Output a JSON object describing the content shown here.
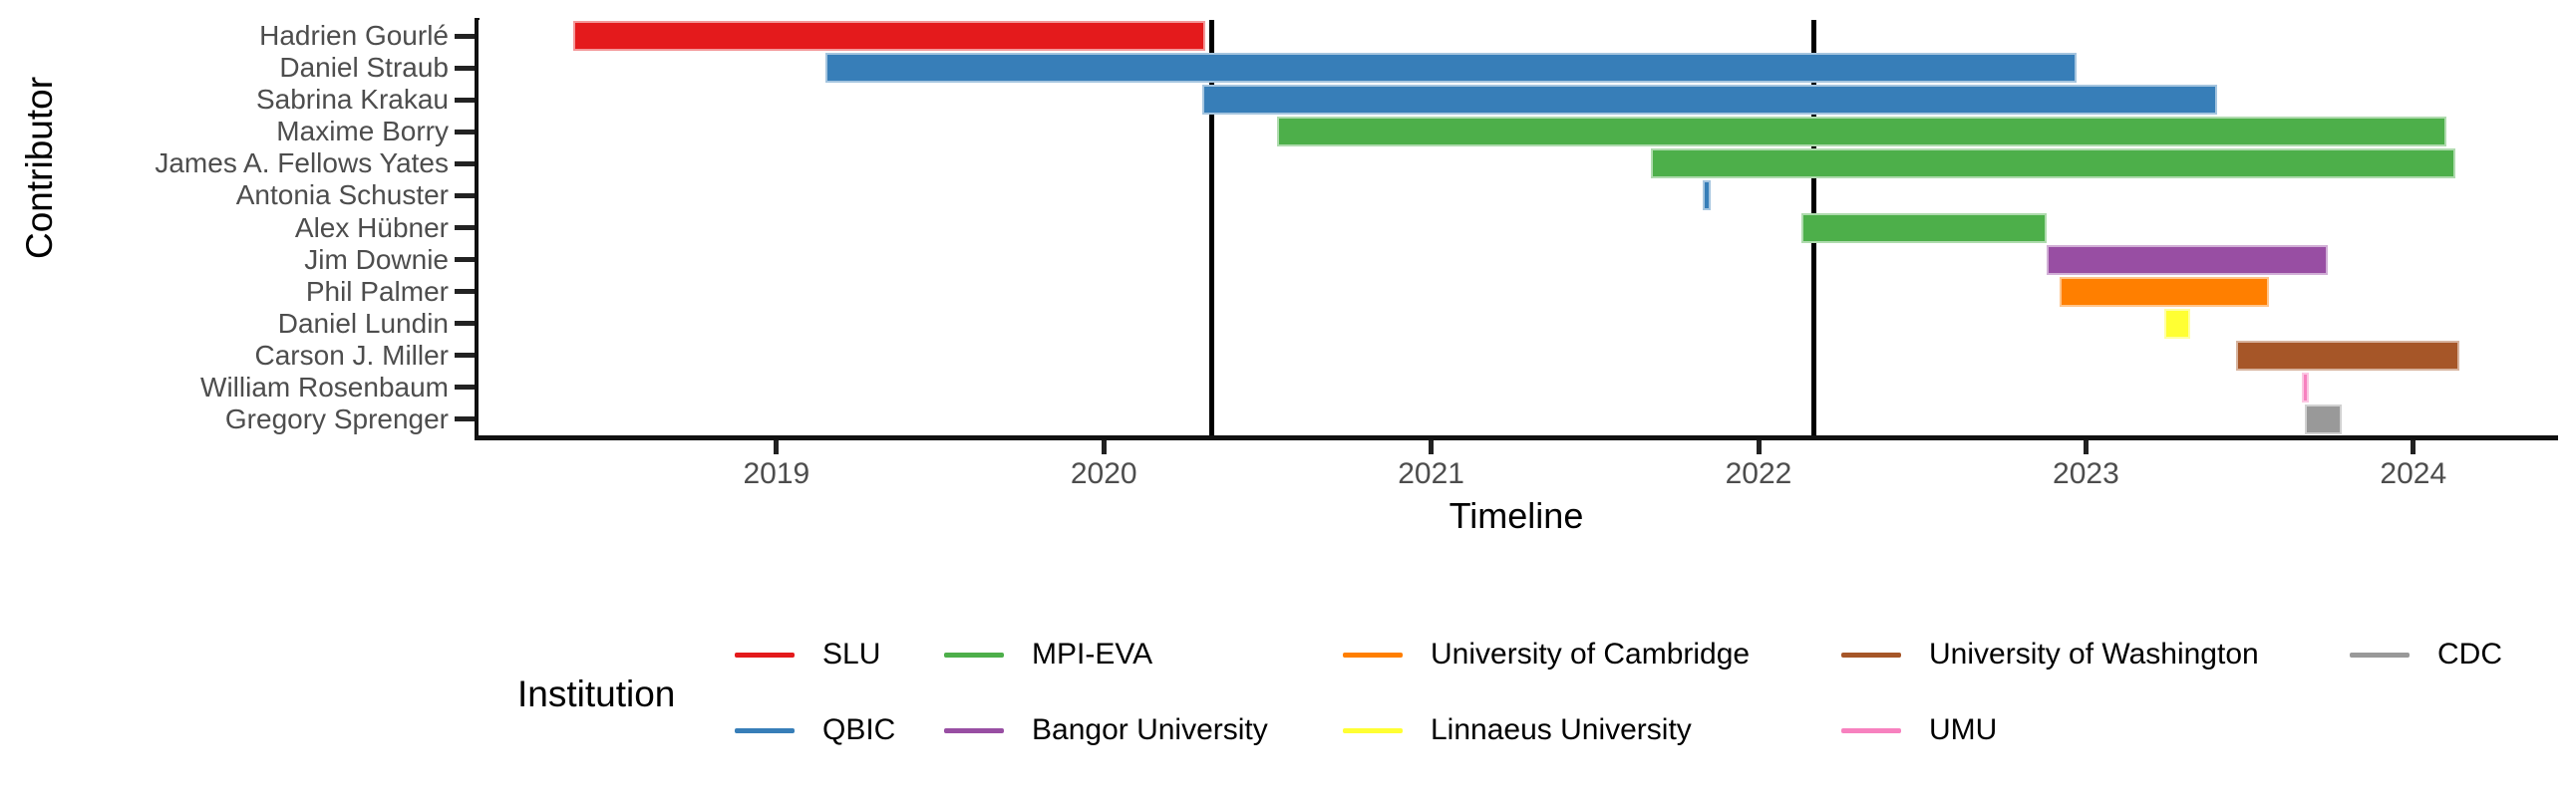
{
  "chart_data": {
    "type": "gantt",
    "xlabel": "Timeline",
    "ylabel": "Contributor",
    "x_domain": [
      2018.09,
      2024.43
    ],
    "x_ticks": [
      "2019",
      "2020",
      "2021",
      "2022",
      "2023",
      "2024"
    ],
    "x_tick_values": [
      2019,
      2020,
      2021,
      2022,
      2023,
      2024
    ],
    "grid": "off",
    "event_lines": [
      2020.33,
      2022.17
    ],
    "legend_title": "Institution",
    "legend_position": "bottom",
    "axis_text_color": "#4d4d4d",
    "axis_line_color": "#111111",
    "institutions": [
      {
        "name": "SLU",
        "color": "#e41a1c"
      },
      {
        "name": "QBIC",
        "color": "#377eb8"
      },
      {
        "name": "MPI-EVA",
        "color": "#4daf4a"
      },
      {
        "name": "Bangor University",
        "color": "#984ea3"
      },
      {
        "name": "University of Cambridge",
        "color": "#ff7f00"
      },
      {
        "name": "Linnaeus University",
        "color": "#ffff33"
      },
      {
        "name": "University of Washington",
        "color": "#a65628"
      },
      {
        "name": "UMU",
        "color": "#f781bf"
      },
      {
        "name": "CDC",
        "color": "#999999"
      }
    ],
    "contributors": [
      {
        "name": "Hadrien Gourlé",
        "institution": "SLU",
        "start": 2018.38,
        "end": 2020.31
      },
      {
        "name": "Daniel Straub",
        "institution": "QBIC",
        "start": 2019.15,
        "end": 2022.97
      },
      {
        "name": "Sabrina Krakau",
        "institution": "QBIC",
        "start": 2020.3,
        "end": 2023.4
      },
      {
        "name": "Maxime Borry",
        "institution": "MPI-EVA",
        "start": 2020.53,
        "end": 2024.1
      },
      {
        "name": "James A. Fellows Yates",
        "institution": "MPI-EVA",
        "start": 2021.67,
        "end": 2024.13
      },
      {
        "name": "Antonia Schuster",
        "institution": "QBIC",
        "start": 2021.83,
        "end": 2021.855
      },
      {
        "name": "Alex Hübner",
        "institution": "MPI-EVA",
        "start": 2022.13,
        "end": 2022.88
      },
      {
        "name": "Jim Downie",
        "institution": "Bangor University",
        "start": 2022.88,
        "end": 2023.74
      },
      {
        "name": "Phil Palmer",
        "institution": "University of Cambridge",
        "start": 2022.92,
        "end": 2023.56
      },
      {
        "name": "Daniel Lundin",
        "institution": "Linnaeus University",
        "start": 2023.24,
        "end": 2023.32
      },
      {
        "name": "Carson J. Miller",
        "institution": "University of Washington",
        "start": 2023.46,
        "end": 2024.14
      },
      {
        "name": "William Rosenbaum",
        "institution": "UMU",
        "start": 2023.66,
        "end": 2023.68
      },
      {
        "name": "Gregory Sprenger",
        "institution": "CDC",
        "start": 2023.67,
        "end": 2023.78
      }
    ],
    "legend_columns": [
      [
        "SLU",
        "QBIC"
      ],
      [
        "MPI-EVA",
        "Bangor University"
      ],
      [
        "University of Cambridge",
        "Linnaeus University"
      ],
      [
        "University of Washington",
        "UMU"
      ],
      [
        "CDC"
      ]
    ]
  }
}
